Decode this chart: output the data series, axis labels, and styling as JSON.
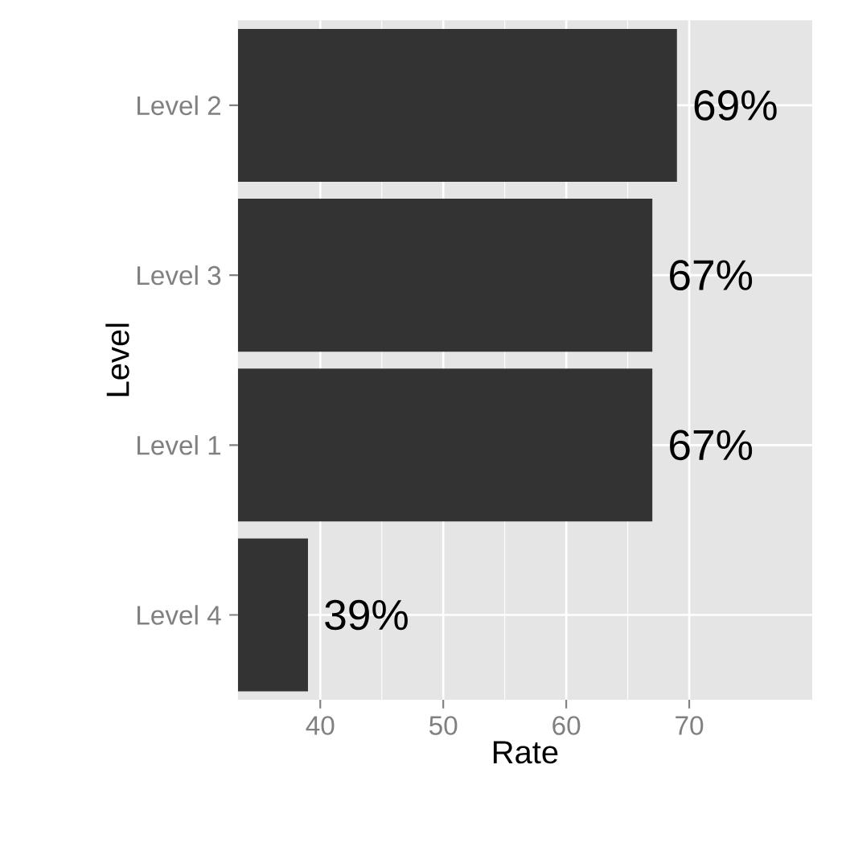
{
  "chart_data": {
    "type": "bar",
    "orientation": "horizontal",
    "xlabel": "Rate",
    "ylabel": "Level",
    "categories": [
      "Level 2",
      "Level 3",
      "Level 1",
      "Level 4"
    ],
    "values": [
      69,
      67,
      67,
      39
    ],
    "value_labels": [
      "69%",
      "67%",
      "67%",
      "39%"
    ],
    "color": "#333333",
    "xlim": [
      33.3,
      80
    ],
    "xticks": [
      40,
      50,
      60,
      70
    ],
    "grid": true
  }
}
